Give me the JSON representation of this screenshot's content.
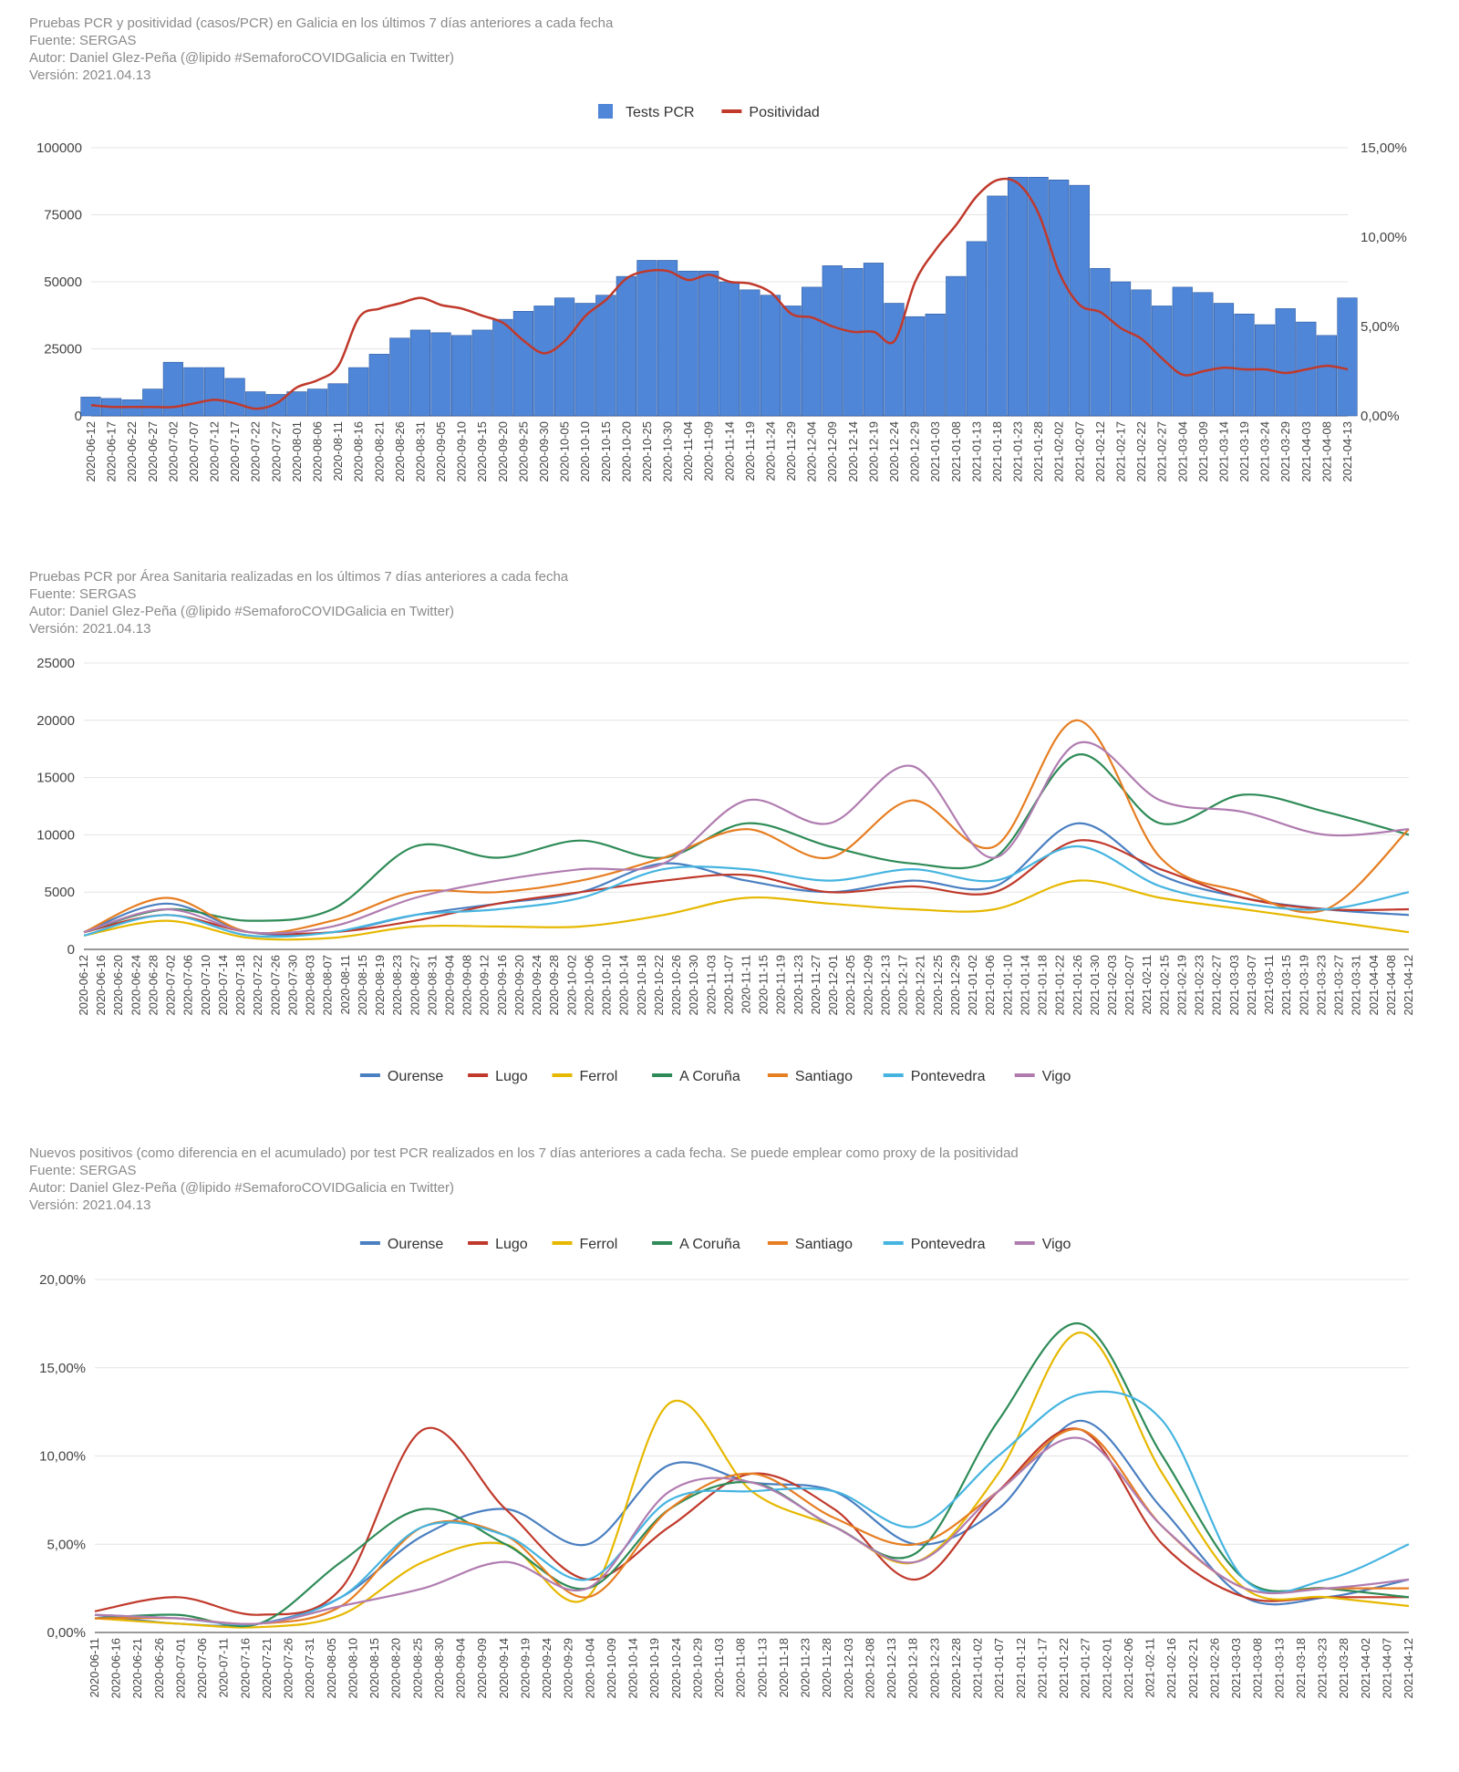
{
  "chart_data": [
    {
      "type": "bar",
      "title": "Pruebas PCR y positividad (casos/PCR) en Galicia en los últimos 7 días anteriores a cada fecha",
      "source": "Fuente: SERGAS",
      "author": "Autor: Daniel Glez-Peña (@lipido #SemaforoCOVIDGalicia en Twitter)",
      "version": "Versión: 2021.04.13",
      "legend": [
        "Tests PCR",
        "Positividad"
      ],
      "legend_position": "top",
      "colors": {
        "tests": "#4f86d8",
        "positividad": "#c0392b"
      },
      "y_left_ticks": [
        "0",
        "25000",
        "50000",
        "75000",
        "100000"
      ],
      "y_left_range": [
        0,
        100000
      ],
      "y_right_ticks": [
        "0,00%",
        "5,00%",
        "10,00%",
        "15,00%"
      ],
      "y_right_range": [
        0,
        15
      ],
      "x_ticks": [
        "2020-06-12",
        "2020-06-17",
        "2020-06-22",
        "2020-06-27",
        "2020-07-02",
        "2020-07-07",
        "2020-07-12",
        "2020-07-17",
        "2020-07-22",
        "2020-07-27",
        "2020-08-01",
        "2020-08-06",
        "2020-08-11",
        "2020-08-16",
        "2020-08-21",
        "2020-08-26",
        "2020-08-31",
        "2020-09-05",
        "2020-09-10",
        "2020-09-15",
        "2020-09-20",
        "2020-09-25",
        "2020-09-30",
        "2020-10-05",
        "2020-10-10",
        "2020-10-15",
        "2020-10-20",
        "2020-10-25",
        "2020-10-30",
        "2020-11-04",
        "2020-11-09",
        "2020-11-14",
        "2020-11-19",
        "2020-11-24",
        "2020-11-29",
        "2020-12-04",
        "2020-12-09",
        "2020-12-14",
        "2020-12-19",
        "2020-12-24",
        "2020-12-29",
        "2021-01-03",
        "2021-01-08",
        "2021-01-13",
        "2021-01-18",
        "2021-01-23",
        "2021-01-28",
        "2021-02-02",
        "2021-02-07",
        "2021-02-12",
        "2021-02-17",
        "2021-02-22",
        "2021-02-27",
        "2021-03-04",
        "2021-03-09",
        "2021-03-14",
        "2021-03-19",
        "2021-03-24",
        "2021-03-29",
        "2021-04-03",
        "2021-04-08",
        "2021-04-13"
      ],
      "tests_pcr": [
        7000,
        6500,
        6000,
        10000,
        20000,
        18000,
        18000,
        14000,
        9000,
        8000,
        9000,
        10000,
        12000,
        18000,
        23000,
        29000,
        32000,
        31000,
        30000,
        32000,
        36000,
        39000,
        41000,
        44000,
        42000,
        45000,
        52000,
        58000,
        58000,
        54000,
        54000,
        50000,
        47000,
        45000,
        41000,
        48000,
        56000,
        55000,
        57000,
        42000,
        37000,
        38000,
        52000,
        65000,
        82000,
        89000,
        89000,
        88000,
        86000,
        55000,
        50000,
        47000,
        41000,
        48000,
        46000,
        42000,
        38000,
        34000,
        40000,
        35000,
        30000,
        44000
      ],
      "positividad": [
        0.6,
        0.5,
        0.5,
        0.5,
        0.5,
        0.7,
        0.9,
        0.7,
        0.4,
        0.7,
        1.6,
        2.0,
        2.8,
        5.5,
        6.0,
        6.3,
        6.6,
        6.2,
        6.0,
        5.6,
        5.2,
        4.2,
        3.5,
        4.2,
        5.6,
        6.5,
        7.7,
        8.1,
        8.1,
        7.6,
        7.9,
        7.5,
        7.4,
        6.9,
        5.7,
        5.5,
        5.0,
        4.7,
        4.7,
        4.2,
        7.5,
        9.3,
        10.7,
        12.3,
        13.2,
        13.0,
        11.3,
        8.0,
        6.2,
        5.8,
        4.9,
        4.3,
        3.2,
        2.3,
        2.5,
        2.7,
        2.6,
        2.6,
        2.4,
        2.6,
        2.8,
        2.6
      ]
    },
    {
      "type": "line",
      "title": "Pruebas PCR por Área Sanitaria realizadas en los últimos 7 días anteriores a cada fecha",
      "source": "Fuente: SERGAS",
      "author": "Autor: Daniel Glez-Peña (@lipido #SemaforoCOVIDGalicia en Twitter)",
      "version": "Versión: 2021.04.13",
      "legend_position": "bottom",
      "y_ticks": [
        "0",
        "5000",
        "10000",
        "15000",
        "20000",
        "25000"
      ],
      "ylim": [
        0,
        25000
      ],
      "x_ticks": [
        "2020-06-12",
        "2020-06-16",
        "2020-06-20",
        "2020-06-24",
        "2020-06-28",
        "2020-07-02",
        "2020-07-06",
        "2020-07-10",
        "2020-07-14",
        "2020-07-18",
        "2020-07-22",
        "2020-07-26",
        "2020-07-30",
        "2020-08-03",
        "2020-08-07",
        "2020-08-11",
        "2020-08-15",
        "2020-08-19",
        "2020-08-23",
        "2020-08-27",
        "2020-08-31",
        "2020-09-04",
        "2020-09-08",
        "2020-09-12",
        "2020-09-16",
        "2020-09-20",
        "2020-09-24",
        "2020-09-28",
        "2020-10-02",
        "2020-10-06",
        "2020-10-10",
        "2020-10-14",
        "2020-10-18",
        "2020-10-22",
        "2020-10-26",
        "2020-10-30",
        "2020-11-03",
        "2020-11-07",
        "2020-11-11",
        "2020-11-15",
        "2020-11-19",
        "2020-11-23",
        "2020-11-27",
        "2020-12-01",
        "2020-12-05",
        "2020-12-09",
        "2020-12-13",
        "2020-12-17",
        "2020-12-21",
        "2020-12-25",
        "2020-12-29",
        "2021-01-02",
        "2021-01-06",
        "2021-01-10",
        "2021-01-14",
        "2021-01-18",
        "2021-01-22",
        "2021-01-26",
        "2021-01-30",
        "2021-02-03",
        "2021-02-07",
        "2021-02-11",
        "2021-02-15",
        "2021-02-19",
        "2021-02-23",
        "2021-02-27",
        "2021-03-03",
        "2021-03-07",
        "2021-03-11",
        "2021-03-15",
        "2021-03-19",
        "2021-03-23",
        "2021-03-27",
        "2021-03-31",
        "2021-04-04",
        "2021-04-08",
        "2021-04-12"
      ],
      "x": [
        "2020-06-12",
        "2020-07-01",
        "2020-07-20",
        "2020-08-08",
        "2020-08-27",
        "2020-09-15",
        "2020-10-04",
        "2020-10-23",
        "2020-11-11",
        "2020-11-30",
        "2020-12-19",
        "2021-01-07",
        "2021-01-26",
        "2021-02-14",
        "2021-03-05",
        "2021-03-24",
        "2021-04-12"
      ],
      "series": [
        {
          "name": "Ourense",
          "color": "#4a7fc1",
          "values": [
            1500,
            4000,
            1500,
            1500,
            3000,
            4000,
            5000,
            7500,
            6000,
            5000,
            6000,
            5500,
            11000,
            6500,
            4500,
            3500,
            3000
          ]
        },
        {
          "name": "Lugo",
          "color": "#c0392b",
          "values": [
            1500,
            3000,
            1500,
            1500,
            2500,
            4000,
            5000,
            6000,
            6500,
            5000,
            5500,
            5000,
            9500,
            7000,
            4500,
            3500,
            3500
          ]
        },
        {
          "name": "Ferrol",
          "color": "#e6b800",
          "values": [
            1200,
            2500,
            1000,
            1000,
            2000,
            2000,
            2000,
            3000,
            4500,
            4000,
            3500,
            3500,
            6000,
            4500,
            3500,
            2500,
            1500
          ]
        },
        {
          "name": "A Coruña",
          "color": "#2e8b57",
          "values": [
            1500,
            3500,
            2500,
            3500,
            9000,
            8000,
            9500,
            8000,
            11000,
            9000,
            7500,
            8000,
            17000,
            11000,
            13500,
            12000,
            10000
          ]
        },
        {
          "name": "Santiago",
          "color": "#e67e22",
          "values": [
            1500,
            4500,
            1500,
            2500,
            5000,
            5000,
            6000,
            8000,
            10500,
            8000,
            13000,
            9000,
            20000,
            8000,
            5000,
            3500,
            10500
          ]
        },
        {
          "name": "Pontevedra",
          "color": "#45b4e0",
          "values": [
            1200,
            3000,
            1200,
            1500,
            3000,
            3500,
            4500,
            7000,
            7000,
            6000,
            7000,
            6000,
            9000,
            5500,
            4000,
            3500,
            5000
          ]
        },
        {
          "name": "Vigo",
          "color": "#b07cb0",
          "values": [
            1500,
            3500,
            1500,
            2000,
            4500,
            6000,
            7000,
            7500,
            13000,
            11000,
            16000,
            8000,
            18000,
            13000,
            12000,
            10000,
            10500
          ]
        }
      ]
    },
    {
      "type": "line",
      "title": "Nuevos positivos (como diferencia en el acumulado) por test PCR realizados en los 7 días anteriores a cada fecha. Se puede emplear como proxy de la positividad",
      "source": "Fuente: SERGAS",
      "author": "Autor: Daniel Glez-Peña (@lipido #SemaforoCOVIDGalicia en Twitter)",
      "version": "Versión: 2021.04.13",
      "legend_position": "top",
      "y_ticks": [
        "0,00%",
        "5,00%",
        "10,00%",
        "15,00%",
        "20,00%"
      ],
      "ylim": [
        0,
        20
      ],
      "x_ticks": [
        "2020-06-11",
        "2020-06-16",
        "2020-06-21",
        "2020-06-26",
        "2020-07-01",
        "2020-07-06",
        "2020-07-11",
        "2020-07-16",
        "2020-07-21",
        "2020-07-26",
        "2020-07-31",
        "2020-08-05",
        "2020-08-10",
        "2020-08-15",
        "2020-08-20",
        "2020-08-25",
        "2020-08-30",
        "2020-09-04",
        "2020-09-09",
        "2020-09-14",
        "2020-09-19",
        "2020-09-24",
        "2020-09-29",
        "2020-10-04",
        "2020-10-09",
        "2020-10-14",
        "2020-10-19",
        "2020-10-24",
        "2020-10-29",
        "2020-11-03",
        "2020-11-08",
        "2020-11-13",
        "2020-11-18",
        "2020-11-23",
        "2020-11-28",
        "2020-12-03",
        "2020-12-08",
        "2020-12-13",
        "2020-12-18",
        "2020-12-23",
        "2020-12-28",
        "2021-01-02",
        "2021-01-07",
        "2021-01-12",
        "2021-01-17",
        "2021-01-22",
        "2021-01-27",
        "2021-02-01",
        "2021-02-06",
        "2021-02-11",
        "2021-02-16",
        "2021-02-21",
        "2021-02-26",
        "2021-03-03",
        "2021-03-08",
        "2021-03-13",
        "2021-03-18",
        "2021-03-23",
        "2021-03-28",
        "2021-04-02",
        "2021-04-07",
        "2021-04-12"
      ],
      "x": [
        "2020-06-11",
        "2020-06-30",
        "2020-07-19",
        "2020-08-07",
        "2020-08-26",
        "2020-09-14",
        "2020-10-03",
        "2020-10-22",
        "2020-11-10",
        "2020-11-29",
        "2020-12-18",
        "2021-01-06",
        "2021-01-25",
        "2021-02-13",
        "2021-03-04",
        "2021-03-23",
        "2021-04-12"
      ],
      "series": [
        {
          "name": "Ourense",
          "color": "#4a7fc1",
          "values": [
            1.0,
            0.5,
            0.5,
            2.0,
            5.5,
            7.0,
            5.0,
            9.5,
            8.5,
            8.0,
            5.0,
            7.0,
            12.0,
            7.0,
            2.0,
            2.0,
            3.0
          ]
        },
        {
          "name": "Lugo",
          "color": "#c0392b",
          "values": [
            1.2,
            2.0,
            1.0,
            2.5,
            11.5,
            7.0,
            3.0,
            6.0,
            9.0,
            7.0,
            3.0,
            8.0,
            11.5,
            5.0,
            2.0,
            2.0,
            2.0
          ]
        },
        {
          "name": "Ferrol",
          "color": "#e6b800",
          "values": [
            0.8,
            0.5,
            0.3,
            1.0,
            4.0,
            5.0,
            2.0,
            13.0,
            8.0,
            6.0,
            4.0,
            9.0,
            17.0,
            9.0,
            2.5,
            2.0,
            1.5
          ]
        },
        {
          "name": "A Coruña",
          "color": "#2e8b57",
          "values": [
            0.8,
            1.0,
            0.5,
            4.0,
            7.0,
            5.0,
            2.5,
            7.0,
            8.5,
            6.0,
            4.5,
            12.0,
            17.5,
            10.0,
            3.0,
            2.5,
            2.0
          ]
        },
        {
          "name": "Santiago",
          "color": "#e67e22",
          "values": [
            0.8,
            0.8,
            0.5,
            1.5,
            6.0,
            5.5,
            2.0,
            7.0,
            9.0,
            6.5,
            5.0,
            8.0,
            11.5,
            6.0,
            2.5,
            2.5,
            2.5
          ]
        },
        {
          "name": "Pontevedra",
          "color": "#45b4e0",
          "values": [
            1.0,
            0.8,
            0.5,
            2.0,
            6.0,
            5.5,
            3.0,
            7.5,
            8.0,
            8.0,
            6.0,
            10.0,
            13.5,
            12.0,
            3.0,
            3.0,
            5.0
          ]
        },
        {
          "name": "Vigo",
          "color": "#b07cb0",
          "values": [
            1.0,
            0.8,
            0.5,
            1.5,
            2.5,
            4.0,
            2.5,
            8.0,
            8.5,
            6.0,
            4.0,
            8.0,
            11.0,
            6.0,
            2.5,
            2.5,
            3.0
          ]
        }
      ]
    }
  ]
}
